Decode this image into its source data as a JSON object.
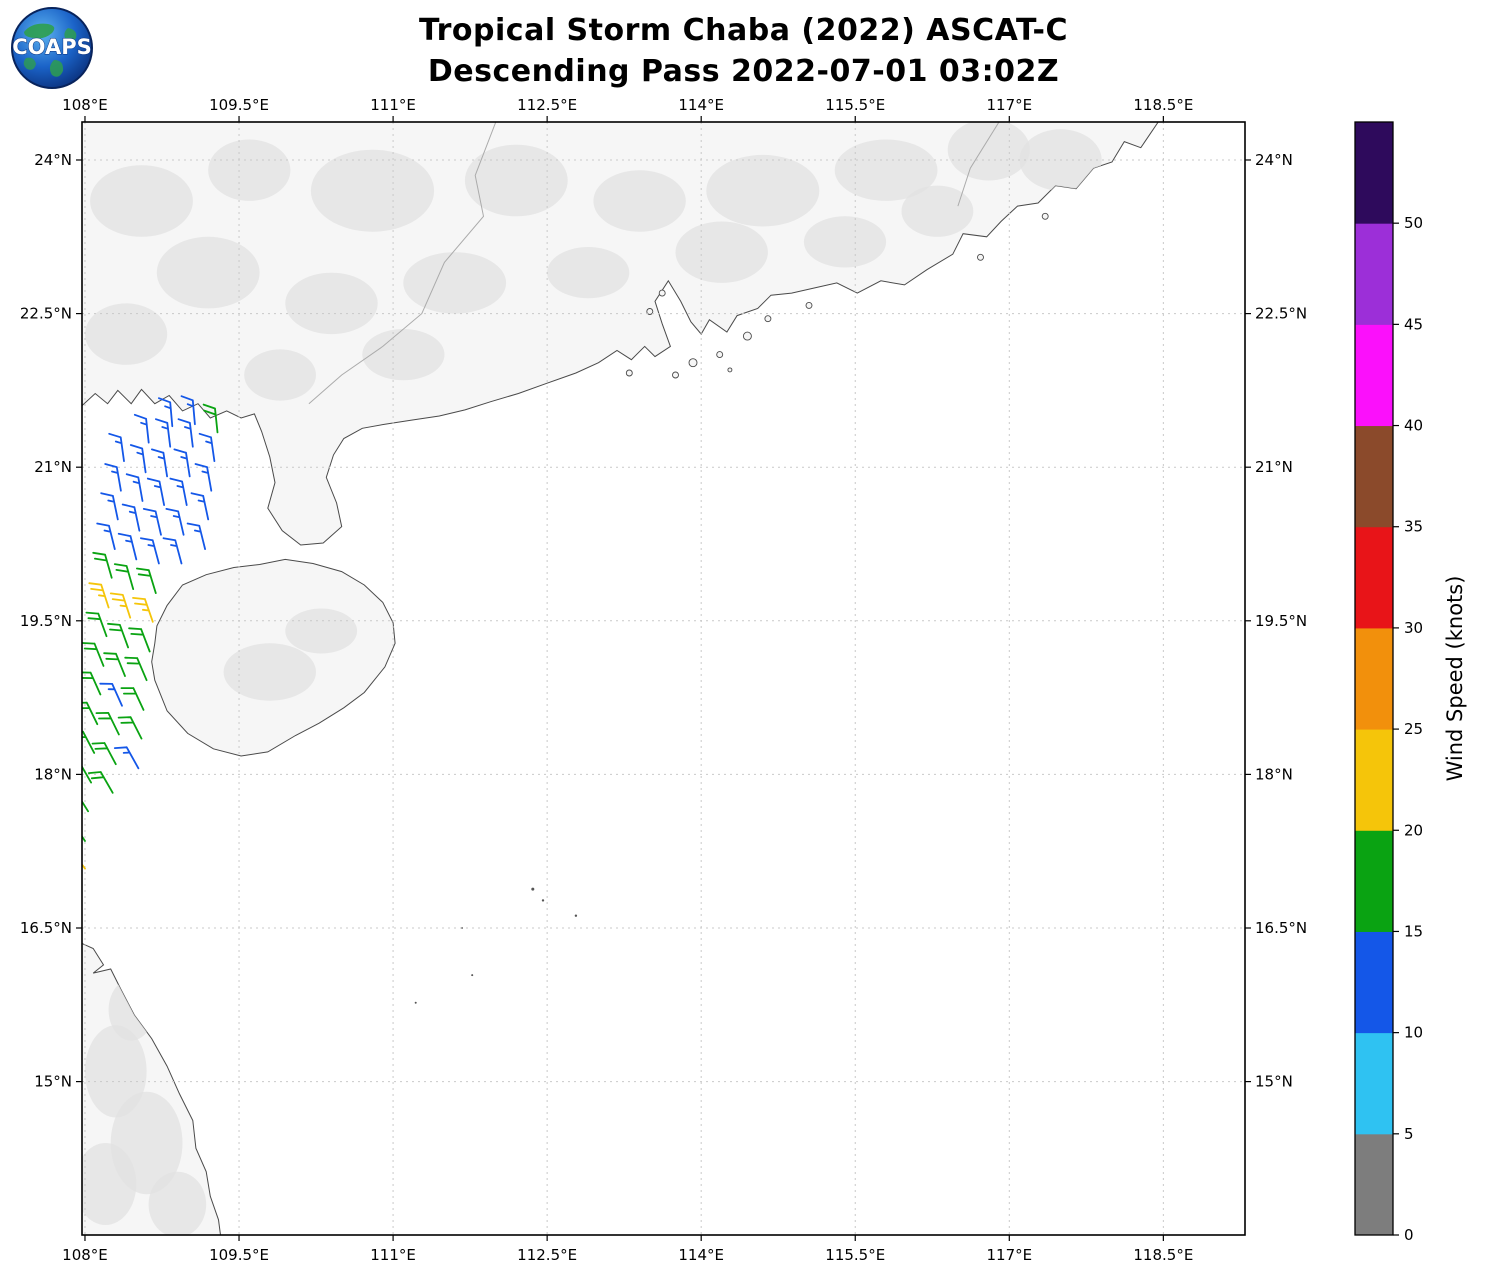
{
  "title": {
    "line1": "Tropical Storm Chaba (2022) ASCAT-C",
    "line2": "Descending Pass 2022-07-01 03:02Z"
  },
  "logo": {
    "text": "COAPS"
  },
  "axes": {
    "x_tick_labels": [
      "108°E",
      "109.5°E",
      "111°E",
      "112.5°E",
      "114°E",
      "115.5°E",
      "117°E",
      "118.5°E"
    ],
    "x_tick_lons": [
      108,
      109.5,
      111,
      112.5,
      114,
      115.5,
      117,
      118.5
    ],
    "y_tick_labels": [
      "24°N",
      "22.5°N",
      "21°N",
      "19.5°N",
      "18°N",
      "16.5°N",
      "15°N"
    ],
    "y_tick_lats": [
      24,
      22.5,
      21,
      19.5,
      18,
      16.5,
      15
    ]
  },
  "colorbar": {
    "label": "Wind Speed (knots)",
    "tick_labels": [
      "0",
      "5",
      "10",
      "15",
      "20",
      "25",
      "30",
      "35",
      "40",
      "45",
      "50"
    ],
    "tick_values": [
      0,
      5,
      10,
      15,
      20,
      25,
      30,
      35,
      40,
      45,
      50
    ],
    "levels": [
      0,
      5,
      10,
      15,
      20,
      25,
      30,
      35,
      40,
      45,
      50,
      55
    ],
    "colors": [
      "#7d7d7d",
      "#2fc2f2",
      "#1457e8",
      "#0aa312",
      "#f5c50a",
      "#f2900c",
      "#e81418",
      "#8b4a2b",
      "#fb10fb",
      "#9c2fd8",
      "#2e0a5c"
    ]
  },
  "chart_data": {
    "type": "wind_barb_map",
    "title": "Tropical Storm Chaba (2022) ASCAT-C — Descending Pass 2022-07-01 03:02Z",
    "instrument": "ASCAT-C",
    "units": "knots",
    "extent": {
      "lon_min": 107.971,
      "lon_max": 119.295,
      "lat_min": 13.502,
      "lat_max": 24.371
    },
    "grid": {
      "style": "dashed",
      "color": "#c9c9c9"
    },
    "wind_barbs": {
      "format": [
        "lon_deg_e",
        "lat_deg_n",
        "dir_from_deg",
        "speed_kt"
      ],
      "points": [
        [
          108.0,
          17.08,
          324,
          23
        ],
        [
          108.0,
          17.35,
          326,
          18
        ],
        [
          108.03,
          17.64,
          328,
          18
        ],
        [
          108.06,
          17.92,
          330,
          18
        ],
        [
          108.09,
          18.21,
          332,
          18
        ],
        [
          108.12,
          18.49,
          334,
          18
        ],
        [
          108.15,
          18.78,
          336,
          18
        ],
        [
          108.18,
          19.06,
          338,
          18
        ],
        [
          108.21,
          19.35,
          340,
          18
        ],
        [
          108.23,
          19.63,
          342,
          23
        ],
        [
          108.26,
          19.92,
          344,
          18
        ],
        [
          108.29,
          20.2,
          346,
          13
        ],
        [
          108.32,
          20.49,
          348,
          13
        ],
        [
          108.35,
          20.77,
          350,
          13
        ],
        [
          108.38,
          21.06,
          352,
          13
        ],
        [
          108.27,
          17.82,
          330,
          18
        ],
        [
          108.3,
          18.1,
          332,
          18
        ],
        [
          108.33,
          18.39,
          334,
          18
        ],
        [
          108.36,
          18.67,
          336,
          13
        ],
        [
          108.39,
          18.96,
          338,
          18
        ],
        [
          108.42,
          19.24,
          340,
          18
        ],
        [
          108.44,
          19.53,
          342,
          23
        ],
        [
          108.47,
          19.81,
          344,
          18
        ],
        [
          108.5,
          20.1,
          346,
          13
        ],
        [
          108.53,
          20.38,
          348,
          13
        ],
        [
          108.56,
          20.67,
          350,
          13
        ],
        [
          108.59,
          20.95,
          352,
          13
        ],
        [
          108.62,
          21.24,
          354,
          13
        ],
        [
          108.52,
          18.06,
          331,
          13
        ],
        [
          108.55,
          18.35,
          333,
          18
        ],
        [
          108.57,
          18.63,
          335,
          18
        ],
        [
          108.6,
          18.92,
          337,
          18
        ],
        [
          108.63,
          19.2,
          339,
          18
        ],
        [
          108.66,
          19.49,
          341,
          23
        ],
        [
          108.69,
          19.77,
          343,
          18
        ],
        [
          108.72,
          20.06,
          345,
          13
        ],
        [
          108.74,
          20.34,
          347,
          13
        ],
        [
          108.77,
          20.63,
          349,
          13
        ],
        [
          108.8,
          20.91,
          351,
          13
        ],
        [
          108.83,
          21.2,
          353,
          13
        ],
        [
          108.85,
          21.4,
          355,
          13
        ],
        [
          108.94,
          20.06,
          345,
          13
        ],
        [
          108.96,
          20.34,
          347,
          13
        ],
        [
          108.99,
          20.63,
          349,
          13
        ],
        [
          109.02,
          20.91,
          351,
          13
        ],
        [
          109.05,
          21.2,
          353,
          13
        ],
        [
          109.07,
          21.42,
          355,
          13
        ],
        [
          109.17,
          20.2,
          346,
          13
        ],
        [
          109.2,
          20.49,
          348,
          13
        ],
        [
          109.23,
          20.77,
          350,
          13
        ],
        [
          109.26,
          21.06,
          352,
          13
        ],
        [
          109.29,
          21.34,
          354,
          18
        ]
      ]
    },
    "geography": {
      "land_fill": "#f6f6f6",
      "terrain_fill": "#e2e2e2",
      "coast_stroke": "#4a4a4a",
      "border_stroke": "#ababab",
      "speck_fill": "#555555",
      "polygons": [
        {
          "name": "china-mainland",
          "points": [
            [
              107.97,
              21.6
            ],
            [
              108.1,
              21.72
            ],
            [
              108.22,
              21.62
            ],
            [
              108.32,
              21.75
            ],
            [
              108.45,
              21.62
            ],
            [
              108.55,
              21.76
            ],
            [
              108.68,
              21.62
            ],
            [
              108.82,
              21.7
            ],
            [
              108.95,
              21.55
            ],
            [
              109.1,
              21.62
            ],
            [
              109.22,
              21.48
            ],
            [
              109.38,
              21.55
            ],
            [
              109.52,
              21.48
            ],
            [
              109.65,
              21.52
            ],
            [
              109.72,
              21.35
            ],
            [
              109.8,
              21.1
            ],
            [
              109.85,
              20.85
            ],
            [
              109.78,
              20.6
            ],
            [
              109.92,
              20.38
            ],
            [
              110.1,
              20.24
            ],
            [
              110.32,
              20.26
            ],
            [
              110.5,
              20.42
            ],
            [
              110.45,
              20.65
            ],
            [
              110.35,
              20.9
            ],
            [
              110.42,
              21.12
            ],
            [
              110.52,
              21.28
            ],
            [
              110.7,
              21.38
            ],
            [
              110.92,
              21.42
            ],
            [
              111.18,
              21.46
            ],
            [
              111.45,
              21.5
            ],
            [
              111.7,
              21.56
            ],
            [
              111.95,
              21.64
            ],
            [
              112.22,
              21.72
            ],
            [
              112.5,
              21.82
            ],
            [
              112.78,
              21.92
            ],
            [
              113.0,
              22.02
            ],
            [
              113.18,
              22.14
            ],
            [
              113.32,
              22.05
            ],
            [
              113.45,
              22.18
            ],
            [
              113.55,
              22.08
            ],
            [
              113.7,
              22.18
            ],
            [
              113.62,
              22.4
            ],
            [
              113.55,
              22.62
            ],
            [
              113.68,
              22.82
            ],
            [
              113.8,
              22.62
            ],
            [
              113.9,
              22.42
            ],
            [
              114.0,
              22.3
            ],
            [
              114.08,
              22.44
            ],
            [
              114.25,
              22.32
            ],
            [
              114.35,
              22.48
            ],
            [
              114.55,
              22.55
            ],
            [
              114.68,
              22.68
            ],
            [
              114.88,
              22.7
            ],
            [
              115.1,
              22.75
            ],
            [
              115.32,
              22.8
            ],
            [
              115.52,
              22.7
            ],
            [
              115.75,
              22.82
            ],
            [
              115.98,
              22.78
            ],
            [
              116.2,
              22.93
            ],
            [
              116.45,
              23.08
            ],
            [
              116.55,
              23.28
            ],
            [
              116.78,
              23.25
            ],
            [
              116.92,
              23.4
            ],
            [
              117.08,
              23.55
            ],
            [
              117.28,
              23.58
            ],
            [
              117.45,
              23.75
            ],
            [
              117.65,
              23.72
            ],
            [
              117.82,
              23.92
            ],
            [
              118.0,
              23.98
            ],
            [
              118.12,
              24.18
            ],
            [
              118.28,
              24.12
            ],
            [
              118.45,
              24.371
            ],
            [
              107.97,
              24.371
            ]
          ]
        },
        {
          "name": "hainan-island",
          "points": [
            [
              108.68,
              19.28
            ],
            [
              108.7,
              19.45
            ],
            [
              108.8,
              19.65
            ],
            [
              108.95,
              19.85
            ],
            [
              109.18,
              19.95
            ],
            [
              109.45,
              20.02
            ],
            [
              109.7,
              20.05
            ],
            [
              109.95,
              20.1
            ],
            [
              110.22,
              20.06
            ],
            [
              110.5,
              19.98
            ],
            [
              110.72,
              19.85
            ],
            [
              110.9,
              19.68
            ],
            [
              111.0,
              19.48
            ],
            [
              111.02,
              19.28
            ],
            [
              110.92,
              19.05
            ],
            [
              110.72,
              18.8
            ],
            [
              110.52,
              18.65
            ],
            [
              110.28,
              18.5
            ],
            [
              110.05,
              18.38
            ],
            [
              109.78,
              18.22
            ],
            [
              109.52,
              18.18
            ],
            [
              109.25,
              18.25
            ],
            [
              109.0,
              18.4
            ],
            [
              108.8,
              18.62
            ],
            [
              108.68,
              18.92
            ],
            [
              108.65,
              19.1
            ]
          ]
        },
        {
          "name": "vietnam-coast",
          "points": [
            [
              107.97,
              16.35
            ],
            [
              108.08,
              16.3
            ],
            [
              108.18,
              16.14
            ],
            [
              108.08,
              16.06
            ],
            [
              108.25,
              16.1
            ],
            [
              108.35,
              15.9
            ],
            [
              108.48,
              15.65
            ],
            [
              108.65,
              15.42
            ],
            [
              108.8,
              15.15
            ],
            [
              108.92,
              14.88
            ],
            [
              109.05,
              14.62
            ],
            [
              109.08,
              14.35
            ],
            [
              109.18,
              14.12
            ],
            [
              109.22,
              13.88
            ],
            [
              109.3,
              13.65
            ],
            [
              109.32,
              13.502
            ],
            [
              107.97,
              13.502
            ]
          ]
        }
      ],
      "island_circles": [
        [
          113.92,
          22.02,
          4
        ],
        [
          114.18,
          22.1,
          3
        ],
        [
          114.45,
          22.28,
          4
        ],
        [
          114.65,
          22.45,
          3
        ],
        [
          113.5,
          22.52,
          3
        ],
        [
          113.75,
          21.9,
          3
        ],
        [
          115.05,
          22.58,
          3
        ],
        [
          113.3,
          21.92,
          3
        ],
        [
          113.62,
          22.7,
          3
        ],
        [
          114.28,
          21.95,
          2
        ],
        [
          116.72,
          23.05,
          3
        ],
        [
          117.35,
          23.45,
          3
        ]
      ],
      "specks": [
        [
          112.36,
          16.88,
          1.5
        ],
        [
          112.46,
          16.77,
          1.2
        ],
        [
          112.78,
          16.62,
          1.2
        ],
        [
          111.67,
          16.5,
          1.0
        ],
        [
          111.77,
          16.04,
          1.0
        ],
        [
          111.22,
          15.77,
          1.0
        ]
      ],
      "borders": [
        [
          [
            112.0,
            24.371
          ],
          [
            111.8,
            23.85
          ],
          [
            111.88,
            23.45
          ],
          [
            111.5,
            23.0
          ],
          [
            111.28,
            22.5
          ],
          [
            110.9,
            22.18
          ],
          [
            110.5,
            21.9
          ],
          [
            110.18,
            21.62
          ]
        ],
        [
          [
            116.9,
            24.371
          ],
          [
            116.62,
            23.92
          ],
          [
            116.5,
            23.55
          ]
        ]
      ],
      "terrain_patches": [
        [
          108.55,
          23.6,
          0.5,
          0.35
        ],
        [
          109.6,
          23.9,
          0.4,
          0.3
        ],
        [
          110.8,
          23.7,
          0.6,
          0.4
        ],
        [
          112.2,
          23.8,
          0.5,
          0.35
        ],
        [
          113.4,
          23.6,
          0.45,
          0.3
        ],
        [
          114.6,
          23.7,
          0.55,
          0.35
        ],
        [
          115.8,
          23.9,
          0.5,
          0.3
        ],
        [
          116.8,
          24.1,
          0.4,
          0.3
        ],
        [
          109.2,
          22.9,
          0.5,
          0.35
        ],
        [
          110.4,
          22.6,
          0.45,
          0.3
        ],
        [
          111.6,
          22.8,
          0.5,
          0.3
        ],
        [
          112.9,
          22.9,
          0.4,
          0.25
        ],
        [
          114.2,
          23.1,
          0.45,
          0.3
        ],
        [
          115.4,
          23.2,
          0.4,
          0.25
        ],
        [
          108.4,
          22.3,
          0.4,
          0.3
        ],
        [
          109.9,
          21.9,
          0.35,
          0.25
        ],
        [
          111.1,
          22.1,
          0.4,
          0.25
        ],
        [
          116.3,
          23.5,
          0.35,
          0.25
        ],
        [
          117.5,
          24.0,
          0.4,
          0.3
        ],
        [
          109.8,
          19.0,
          0.45,
          0.28
        ],
        [
          110.3,
          19.4,
          0.35,
          0.22
        ],
        [
          108.3,
          15.1,
          0.3,
          0.45
        ],
        [
          108.6,
          14.4,
          0.35,
          0.5
        ],
        [
          108.2,
          14.0,
          0.3,
          0.4
        ],
        [
          108.9,
          13.8,
          0.28,
          0.32
        ],
        [
          108.45,
          15.7,
          0.22,
          0.3
        ]
      ]
    }
  }
}
